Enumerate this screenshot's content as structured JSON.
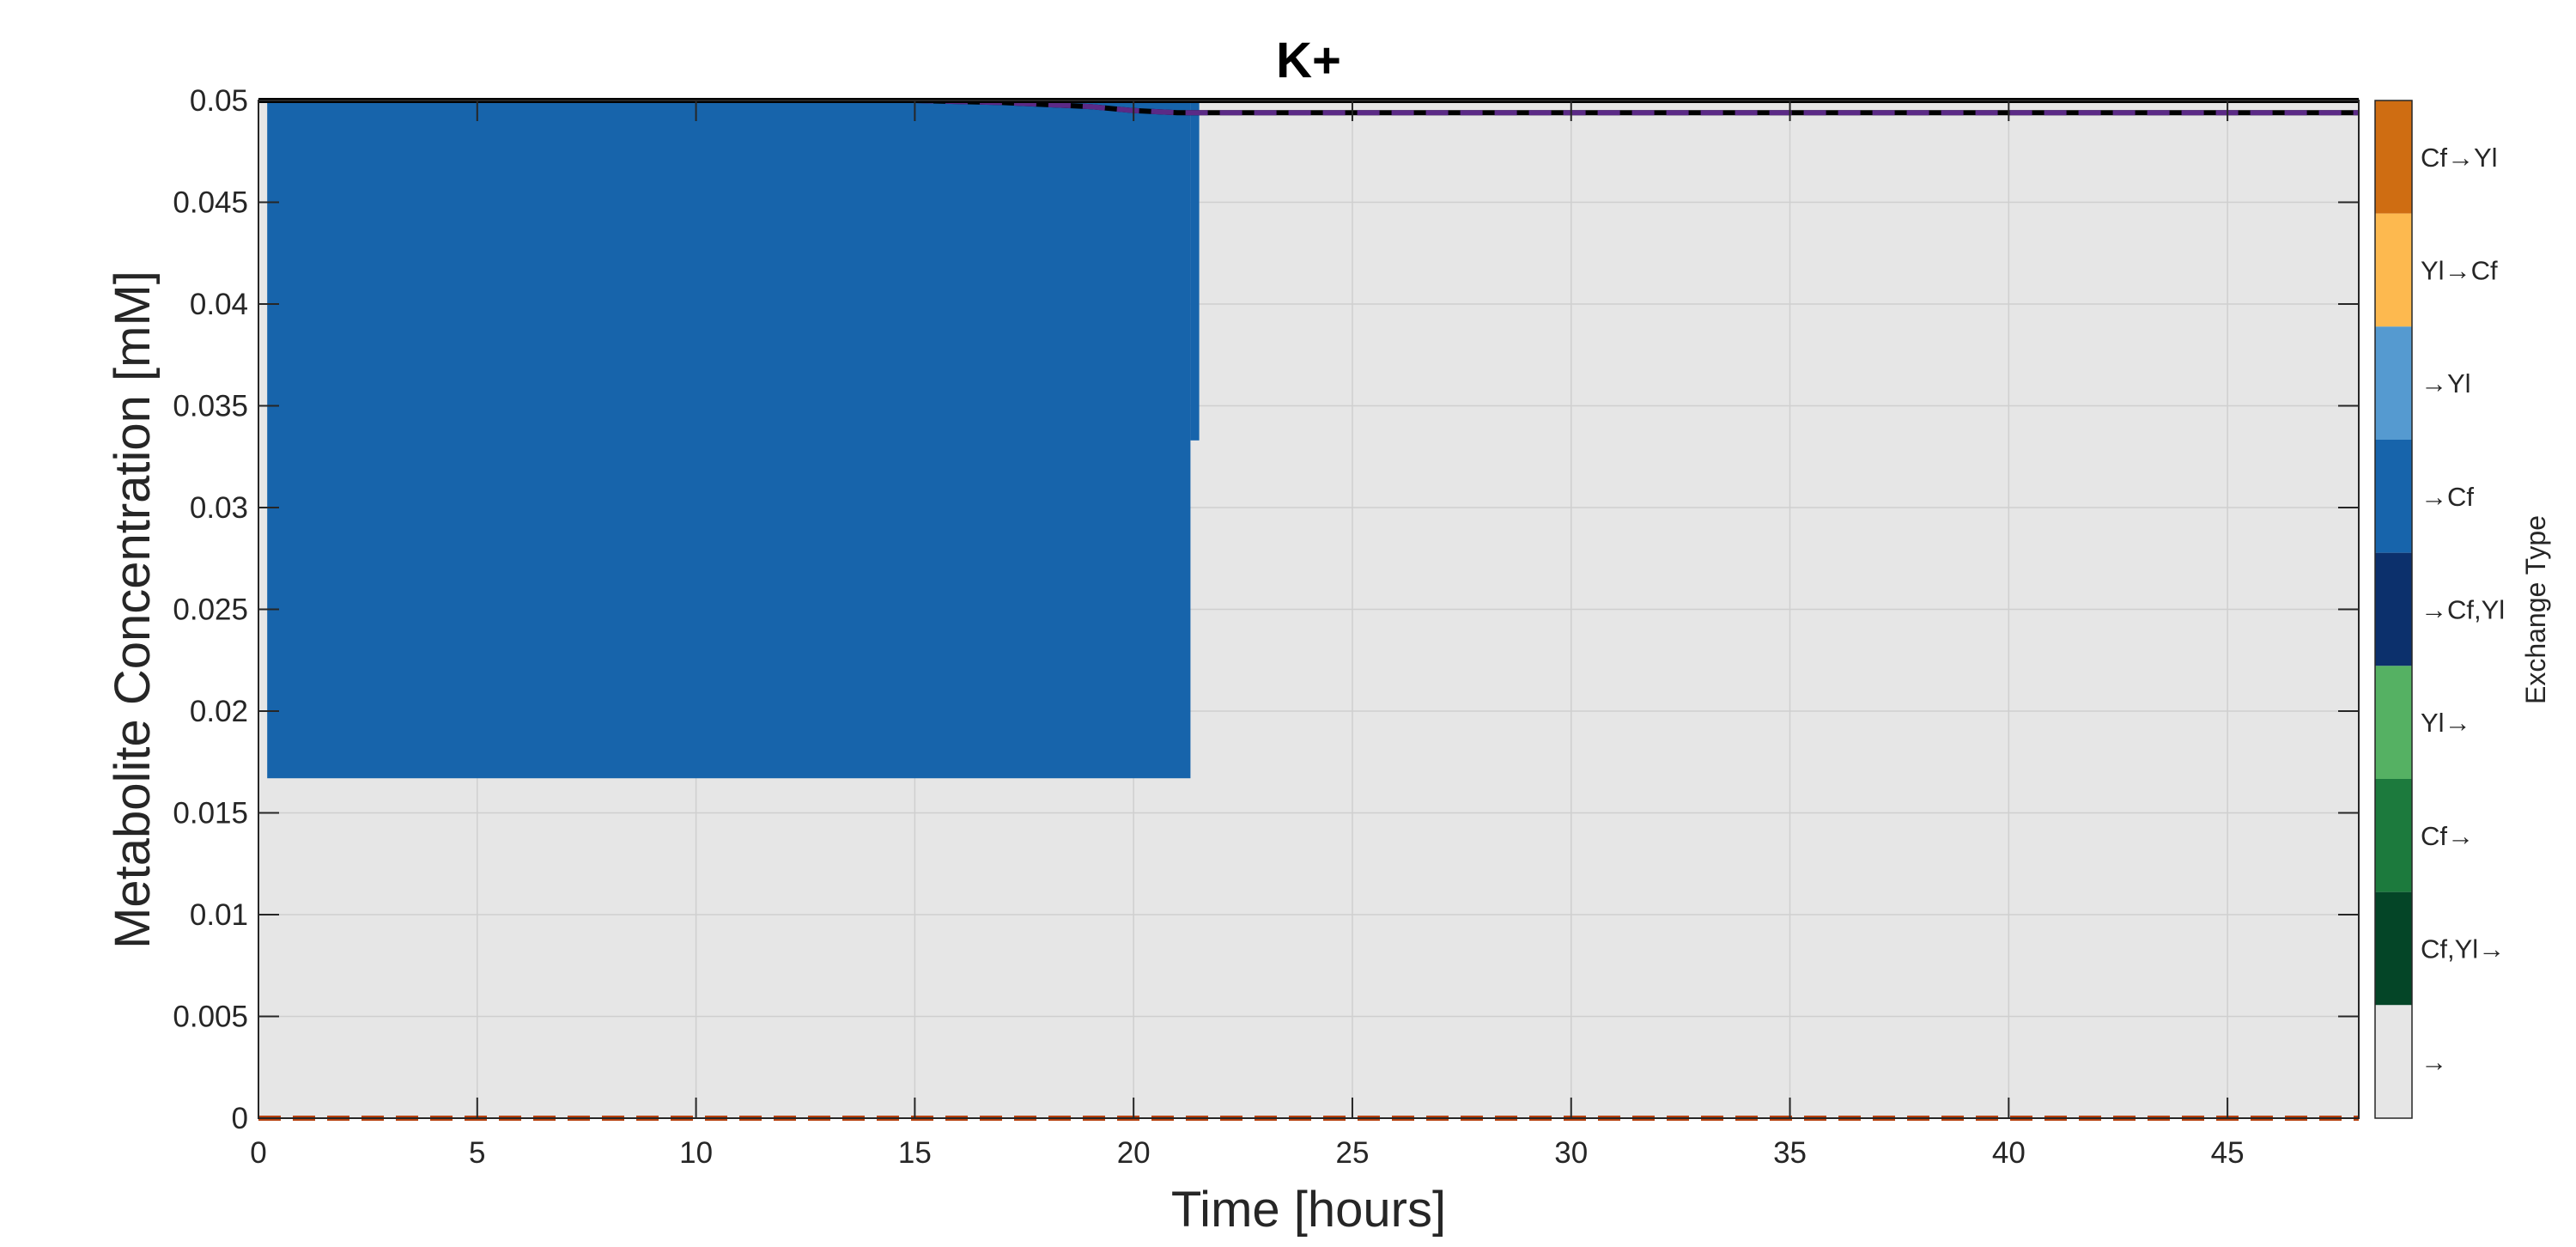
{
  "chart_data": {
    "type": "area",
    "title": "K+",
    "xlabel": "Time [hours]",
    "ylabel": "Metabolite Concentration [mM]",
    "xlim": [
      0,
      48
    ],
    "ylim": [
      0,
      0.05
    ],
    "xticks": [
      0,
      5,
      10,
      15,
      20,
      25,
      30,
      35,
      40,
      45
    ],
    "xtick_labels": [
      "0",
      "5",
      "10",
      "15",
      "20",
      "25",
      "30",
      "35",
      "40",
      "45"
    ],
    "yticks": [
      0,
      0.005,
      0.01,
      0.015,
      0.02,
      0.025,
      0.03,
      0.035,
      0.04,
      0.045,
      0.05
    ],
    "ytick_labels": [
      "0",
      "0.005",
      "0.01",
      "0.015",
      "0.02",
      "0.025",
      "0.03",
      "0.035",
      "0.04",
      "0.045",
      "0.05"
    ],
    "grid": true,
    "background_color": "#e6e6e6",
    "exchange_regions": [
      {
        "x_start": 0.2,
        "x_end": 21.3,
        "y_bottom": 0.0167,
        "y_top": 0.05,
        "exchange_type": "→Cf",
        "color": "#1764ab"
      },
      {
        "x_start": 21.3,
        "x_end": 21.5,
        "y_bottom": 0.0333,
        "y_top": 0.05,
        "exchange_type": "→Cf",
        "color": "#1764ab"
      }
    ],
    "series": [
      {
        "style": "solid",
        "color": "#000000",
        "x": [
          0,
          5,
          10,
          15,
          17,
          18,
          19,
          20,
          21,
          22,
          25,
          30,
          35,
          40,
          45,
          48
        ],
        "values": [
          0.05,
          0.05,
          0.05,
          0.05,
          0.0499,
          0.0498,
          0.0497,
          0.0495,
          0.0494,
          0.0494,
          0.0494,
          0.0494,
          0.0494,
          0.0494,
          0.0494,
          0.0494
        ]
      },
      {
        "style": "dashed",
        "color": "#5b2a86",
        "x": [
          0,
          5,
          10,
          15,
          17,
          18,
          19,
          20,
          21,
          22,
          25,
          30,
          35,
          40,
          45,
          48
        ],
        "values": [
          0.05,
          0.05,
          0.05,
          0.05,
          0.0499,
          0.0498,
          0.0497,
          0.0495,
          0.0494,
          0.0494,
          0.0494,
          0.0494,
          0.0494,
          0.0494,
          0.0494,
          0.0494
        ]
      },
      {
        "style": "solid",
        "color": "#000000",
        "x": [
          0,
          48
        ],
        "values": [
          0.05,
          0.05
        ]
      },
      {
        "style": "dashed",
        "color": "#b8420f",
        "x": [
          0,
          48
        ],
        "values": [
          0,
          0
        ]
      }
    ],
    "colorbar": {
      "label": "Exchange Type",
      "entries": [
        {
          "label": "Cf→Yl",
          "color": "#cf6d12"
        },
        {
          "label": "Yl→Cf",
          "color": "#fdb94f"
        },
        {
          "label": "→Yl",
          "color": "#559ad0"
        },
        {
          "label": "→Cf",
          "color": "#1764ab"
        },
        {
          "label": "→Cf,Yl",
          "color": "#0c306c"
        },
        {
          "label": "Yl→",
          "color": "#55b163"
        },
        {
          "label": "Cf→",
          "color": "#1c7a3d"
        },
        {
          "label": "Cf,Yl→",
          "color": "#044527"
        },
        {
          "label": "→",
          "color": "#e6e6e6"
        }
      ]
    }
  }
}
